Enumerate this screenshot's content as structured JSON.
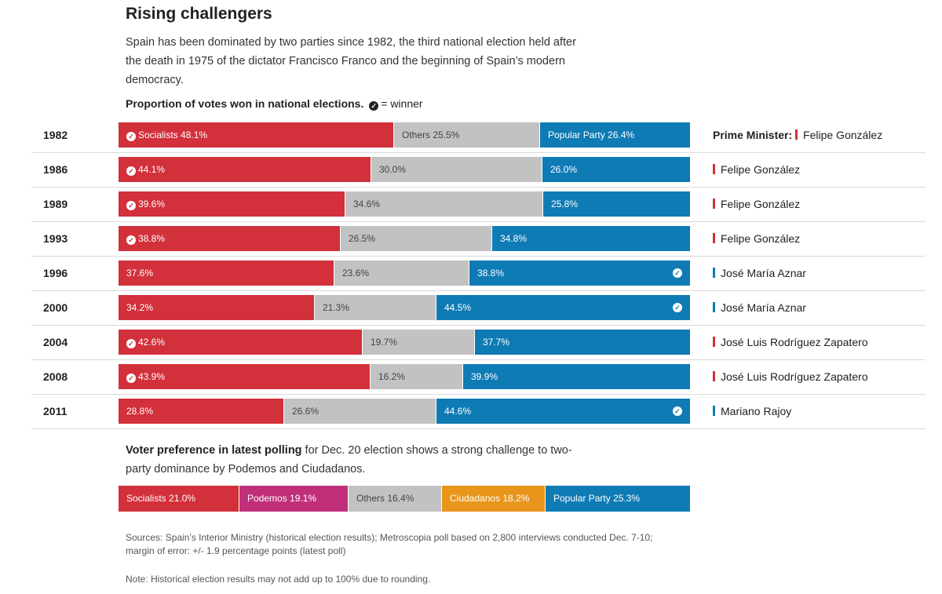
{
  "title": "Rising challengers",
  "intro": "Spain has been dominated by two parties since 1982, the third national election held after the death in 1975 of the dictator Francisco Franco and the beginning of Spain’s modern democracy.",
  "subhead": {
    "bold": "Proportion of votes won in national elections.",
    "legend_text": "= winner"
  },
  "colors": {
    "socialists": "#d2303b",
    "others": "#c2c2c2",
    "popular_party": "#0f7bb5",
    "podemos": "#c0307a",
    "ciudadanos": "#e8951c"
  },
  "chart_data": [
    {
      "type": "bar",
      "stacked": "100%",
      "title": "Proportion of votes won in national elections.",
      "categories": [
        "1982",
        "1986",
        "1989",
        "1993",
        "1996",
        "2000",
        "2004",
        "2008",
        "2011"
      ],
      "series": [
        {
          "name": "Socialists",
          "values": [
            48.1,
            44.1,
            39.6,
            38.8,
            37.6,
            34.2,
            42.6,
            43.9,
            28.8
          ]
        },
        {
          "name": "Others",
          "values": [
            25.5,
            30.0,
            34.6,
            26.5,
            23.6,
            21.3,
            19.7,
            16.2,
            26.6
          ]
        },
        {
          "name": "Popular Party",
          "values": [
            26.4,
            26.0,
            25.8,
            34.8,
            38.8,
            44.5,
            37.7,
            39.9,
            44.6
          ]
        }
      ],
      "rows": [
        {
          "year": "1982",
          "soc_label": "Socialists 48.1%",
          "oth_label": "Others 25.5%",
          "pp_label": "Popular Party 26.4%",
          "winner": "Socialists",
          "pm": "Felipe González",
          "pm_party": "Socialists"
        },
        {
          "year": "1986",
          "soc_label": "44.1%",
          "oth_label": "30.0%",
          "pp_label": "26.0%",
          "winner": "Socialists",
          "pm": "Felipe González",
          "pm_party": "Socialists"
        },
        {
          "year": "1989",
          "soc_label": "39.6%",
          "oth_label": "34.6%",
          "pp_label": "25.8%",
          "winner": "Socialists",
          "pm": "Felipe González",
          "pm_party": "Socialists"
        },
        {
          "year": "1993",
          "soc_label": "38.8%",
          "oth_label": "26.5%",
          "pp_label": "34.8%",
          "winner": "Socialists",
          "pm": "Felipe González",
          "pm_party": "Socialists"
        },
        {
          "year": "1996",
          "soc_label": "37.6%",
          "oth_label": "23.6%",
          "pp_label": "38.8%",
          "winner": "Popular Party",
          "pm": "José María Aznar",
          "pm_party": "Popular Party"
        },
        {
          "year": "2000",
          "soc_label": "34.2%",
          "oth_label": "21.3%",
          "pp_label": "44.5%",
          "winner": "Popular Party",
          "pm": "José María Aznar",
          "pm_party": "Popular Party"
        },
        {
          "year": "2004",
          "soc_label": "42.6%",
          "oth_label": "19.7%",
          "pp_label": "37.7%",
          "winner": "Socialists",
          "pm": "José Luis Rodríguez Zapatero",
          "pm_party": "Socialists"
        },
        {
          "year": "2008",
          "soc_label": "43.9%",
          "oth_label": "16.2%",
          "pp_label": "39.9%",
          "winner": "Socialists",
          "pm": "José Luis Rodríguez Zapatero",
          "pm_party": "Socialists"
        },
        {
          "year": "2011",
          "soc_label": "28.8%",
          "oth_label": "26.6%",
          "pp_label": "44.6%",
          "winner": "Popular Party",
          "pm": "Mariano Rajoy",
          "pm_party": "Popular Party"
        }
      ],
      "pm_label": "Prime Minister:"
    },
    {
      "type": "bar",
      "stacked": "100%",
      "title": "Voter preference in latest polling",
      "categories": [
        "Socialists",
        "Podemos",
        "Others",
        "Ciudadanos",
        "Popular Party"
      ],
      "values": [
        21.0,
        19.1,
        16.4,
        18.2,
        25.3
      ],
      "segments": [
        {
          "label": "Socialists  21.0%",
          "value": 21.0,
          "color_key": "socialists"
        },
        {
          "label": "Podemos  19.1%",
          "value": 19.1,
          "color_key": "podemos"
        },
        {
          "label": "Others  16.4%",
          "value": 16.4,
          "color_key": "others"
        },
        {
          "label": "Ciudadanos  18.2%",
          "value": 18.2,
          "color_key": "ciudadanos"
        },
        {
          "label": "Popular Party  25.3%",
          "value": 25.3,
          "color_key": "popular_party"
        }
      ]
    }
  ],
  "poll_text": {
    "bold": "Voter preference in latest polling",
    "rest": " for Dec. 20 election shows a strong challenge to two-party dominance by Podemos and Ciudadanos."
  },
  "sources": "Sources: Spain’s Interior Ministry (historical election results); Metroscopia poll based on 2,800 interviews conducted Dec. 7-10; margin of error: +/- 1.9 percentage points (latest poll)",
  "note": "Note: Historical election results may not add up to 100% due to rounding."
}
